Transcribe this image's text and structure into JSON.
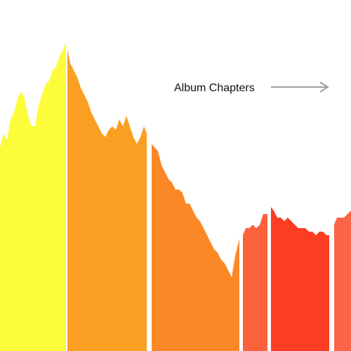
{
  "colors": {
    "background": "#ffffff",
    "separator": "#ffffff",
    "arrow": "#9e9e9e",
    "annotation_text": "#111111"
  },
  "chart_data": {
    "type": "area",
    "title": "",
    "xlabel": "",
    "ylabel": "",
    "grid": false,
    "legend": "none",
    "annotations": [
      {
        "text": "Album Chapters",
        "arrow": "right"
      }
    ],
    "xlim": [
      0,
      100
    ],
    "ylim": [
      0,
      100
    ],
    "segments": [
      {
        "color": "#fcfc3a",
        "x": [
          0,
          18.8
        ]
      },
      {
        "color": "#fb9f23",
        "x": [
          19.2,
          41.8
        ]
      },
      {
        "color": "#fb8826",
        "x": [
          43.2,
          68.2
        ]
      },
      {
        "color": "#fb613a",
        "x": [
          69.2,
          76.2
        ]
      },
      {
        "color": "#fb3e21",
        "x": [
          77.2,
          93.8
        ]
      },
      {
        "color": "#fb6448",
        "x": [
          95.2,
          100
        ]
      }
    ],
    "x": [
      0,
      1,
      2,
      3,
      4,
      5,
      6,
      7,
      8,
      9,
      10,
      11,
      12,
      13,
      14,
      15,
      16,
      17,
      18,
      18.8,
      19.2,
      20,
      21,
      22,
      23,
      24,
      25,
      26,
      27,
      28,
      29,
      30,
      31,
      32,
      33,
      34,
      35,
      36,
      37,
      38,
      39,
      40,
      41,
      41.8,
      43.2,
      44,
      45,
      46,
      47,
      48,
      49,
      50,
      51,
      52,
      53,
      54,
      55,
      56,
      57,
      58,
      59,
      60,
      61,
      62,
      63,
      64,
      65,
      66,
      67,
      68.2,
      69.2,
      70,
      71,
      72,
      73,
      74,
      75,
      76.2,
      77.2,
      78,
      79,
      80,
      81,
      82,
      83,
      84,
      85,
      86,
      87,
      88,
      89,
      90,
      91,
      92,
      93,
      93.8,
      95.2,
      96,
      97,
      98,
      99,
      100
    ],
    "y": [
      58,
      62,
      60,
      66,
      68,
      72,
      74,
      72,
      67,
      64,
      64,
      70,
      73,
      76,
      77,
      80,
      81,
      84,
      86,
      88,
      86,
      82,
      80,
      78,
      75,
      73,
      71,
      68,
      66,
      64,
      62,
      61,
      63,
      64,
      63,
      66,
      64,
      67,
      64,
      61,
      59,
      61,
      64,
      62,
      59,
      58,
      57,
      53,
      51,
      49,
      48,
      46,
      46,
      45,
      42,
      42,
      40,
      38,
      37,
      35,
      33,
      31,
      29,
      28,
      26,
      25,
      23,
      21,
      27,
      32,
      33,
      35,
      35,
      36,
      35,
      36,
      39,
      39,
      41,
      40,
      38,
      38,
      37,
      38,
      37,
      36,
      35,
      35,
      35,
      34,
      34,
      33,
      34,
      34,
      33,
      33,
      36,
      38,
      38,
      38,
      39,
      40
    ]
  }
}
